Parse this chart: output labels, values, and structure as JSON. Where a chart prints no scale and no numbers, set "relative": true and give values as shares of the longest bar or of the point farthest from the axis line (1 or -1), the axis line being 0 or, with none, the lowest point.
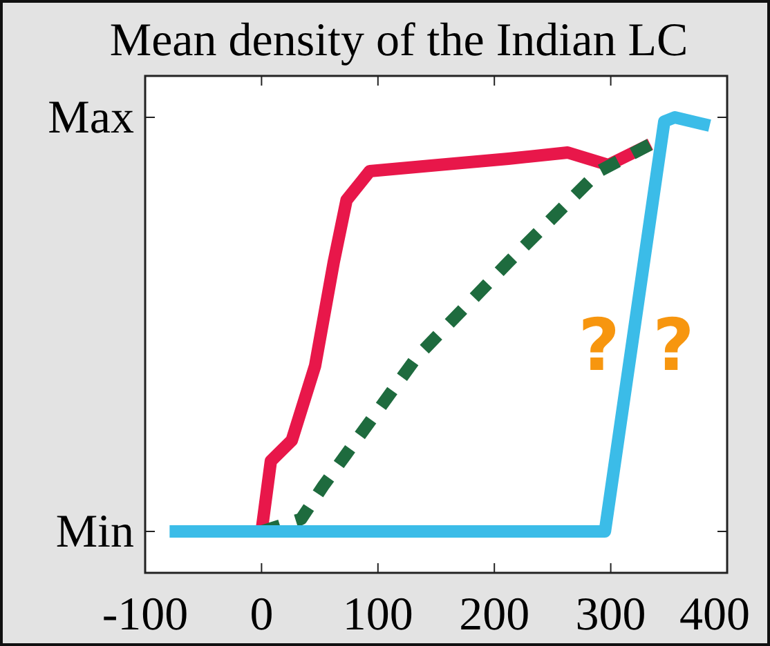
{
  "chart_data": {
    "type": "line",
    "title": "Mean density of the Indian LC",
    "xlim": [
      -100,
      400
    ],
    "xticks": [
      -100,
      0,
      100,
      200,
      300,
      400
    ],
    "relative": true,
    "grid": false,
    "series": [
      {
        "color": "#e8174a",
        "line_style": "solid",
        "x": [
          0,
          8,
          26,
          46,
          62,
          73,
          93,
          152,
          212,
          263,
          298,
          334
        ],
        "values": [
          0,
          0.17,
          0.22,
          0.4,
          0.65,
          0.8,
          0.87,
          0.885,
          0.9,
          0.915,
          0.885,
          0.935
        ]
      },
      {
        "color": "#1e6b3e",
        "line_style": "dashed",
        "x": [
          0,
          34,
          53,
          133,
          212,
          290,
          334
        ],
        "values": [
          0,
          0.03,
          0.11,
          0.42,
          0.65,
          0.87,
          0.935
        ]
      },
      {
        "color": "#3bbce8",
        "line_style": "solid",
        "x": [
          -79,
          295,
          346,
          355,
          385
        ],
        "values": [
          0,
          0,
          0.99,
          1,
          0.98
        ]
      }
    ],
    "annotations": [
      "Min",
      "Max",
      "?",
      "?"
    ]
  }
}
